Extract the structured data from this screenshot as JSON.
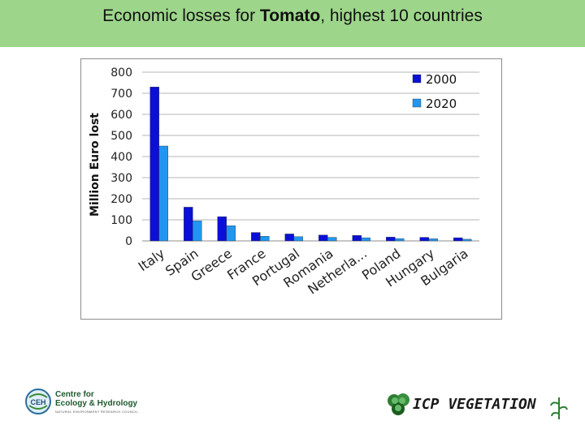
{
  "header": {
    "title_prefix": "Economic losses for ",
    "title_bold": "Tomato",
    "title_suffix": ", highest 10 countries",
    "background": "#9dd68a"
  },
  "chart_data": {
    "type": "bar",
    "title": "",
    "xlabel": "",
    "ylabel": "Million Euro lost",
    "ylim": [
      0,
      800
    ],
    "yticks": [
      0,
      100,
      200,
      300,
      400,
      500,
      600,
      700,
      800
    ],
    "categories": [
      "Italy",
      "Spain",
      "Greece",
      "France",
      "Portugal",
      "Romania",
      "Netherla...",
      "Poland",
      "Hungary",
      "Bulgaria"
    ],
    "series": [
      {
        "name": "2000",
        "color": "#0a10d6",
        "values": [
          730,
          160,
          115,
          40,
          33,
          28,
          26,
          18,
          17,
          15
        ]
      },
      {
        "name": "2020",
        "color": "#2196f0",
        "values": [
          450,
          95,
          72,
          22,
          20,
          17,
          15,
          11,
          10,
          8
        ]
      }
    ],
    "legend_position": "top-right",
    "grid": true
  },
  "footer": {
    "ceh_line1": "Centre for",
    "ceh_line2": "Ecology & Hydrology",
    "ceh_sub": "NATURAL ENVIRONMENT RESEARCH COUNCIL",
    "ceh_mark": "CEH",
    "icp_label": "ICP VEGETATION"
  }
}
